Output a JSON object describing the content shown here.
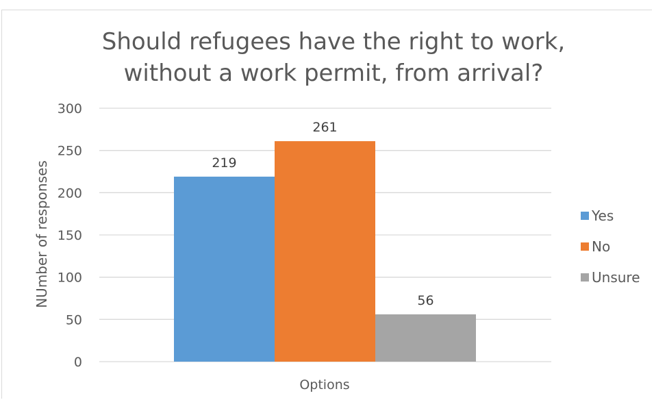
{
  "chart_data": {
    "type": "bar",
    "title": "Should refugees have the right to work, without a work permit, from arrival?",
    "title_lines": [
      "Should refugees have the right to work,",
      "without a work permit, from arrival?"
    ],
    "categories": [
      "Options"
    ],
    "series": [
      {
        "name": "Yes",
        "values": [
          219
        ],
        "color": "#5b9bd5"
      },
      {
        "name": "No",
        "values": [
          261
        ],
        "color": "#ed7d31"
      },
      {
        "name": "Unsure",
        "values": [
          56
        ],
        "color": "#a5a5a5"
      }
    ],
    "xlabel": "Options",
    "ylabel": "NUmber of responses",
    "ylim": [
      0,
      300
    ],
    "yticks": [
      0,
      50,
      100,
      150,
      200,
      250,
      300
    ],
    "grid": true,
    "legend_position": "right"
  }
}
